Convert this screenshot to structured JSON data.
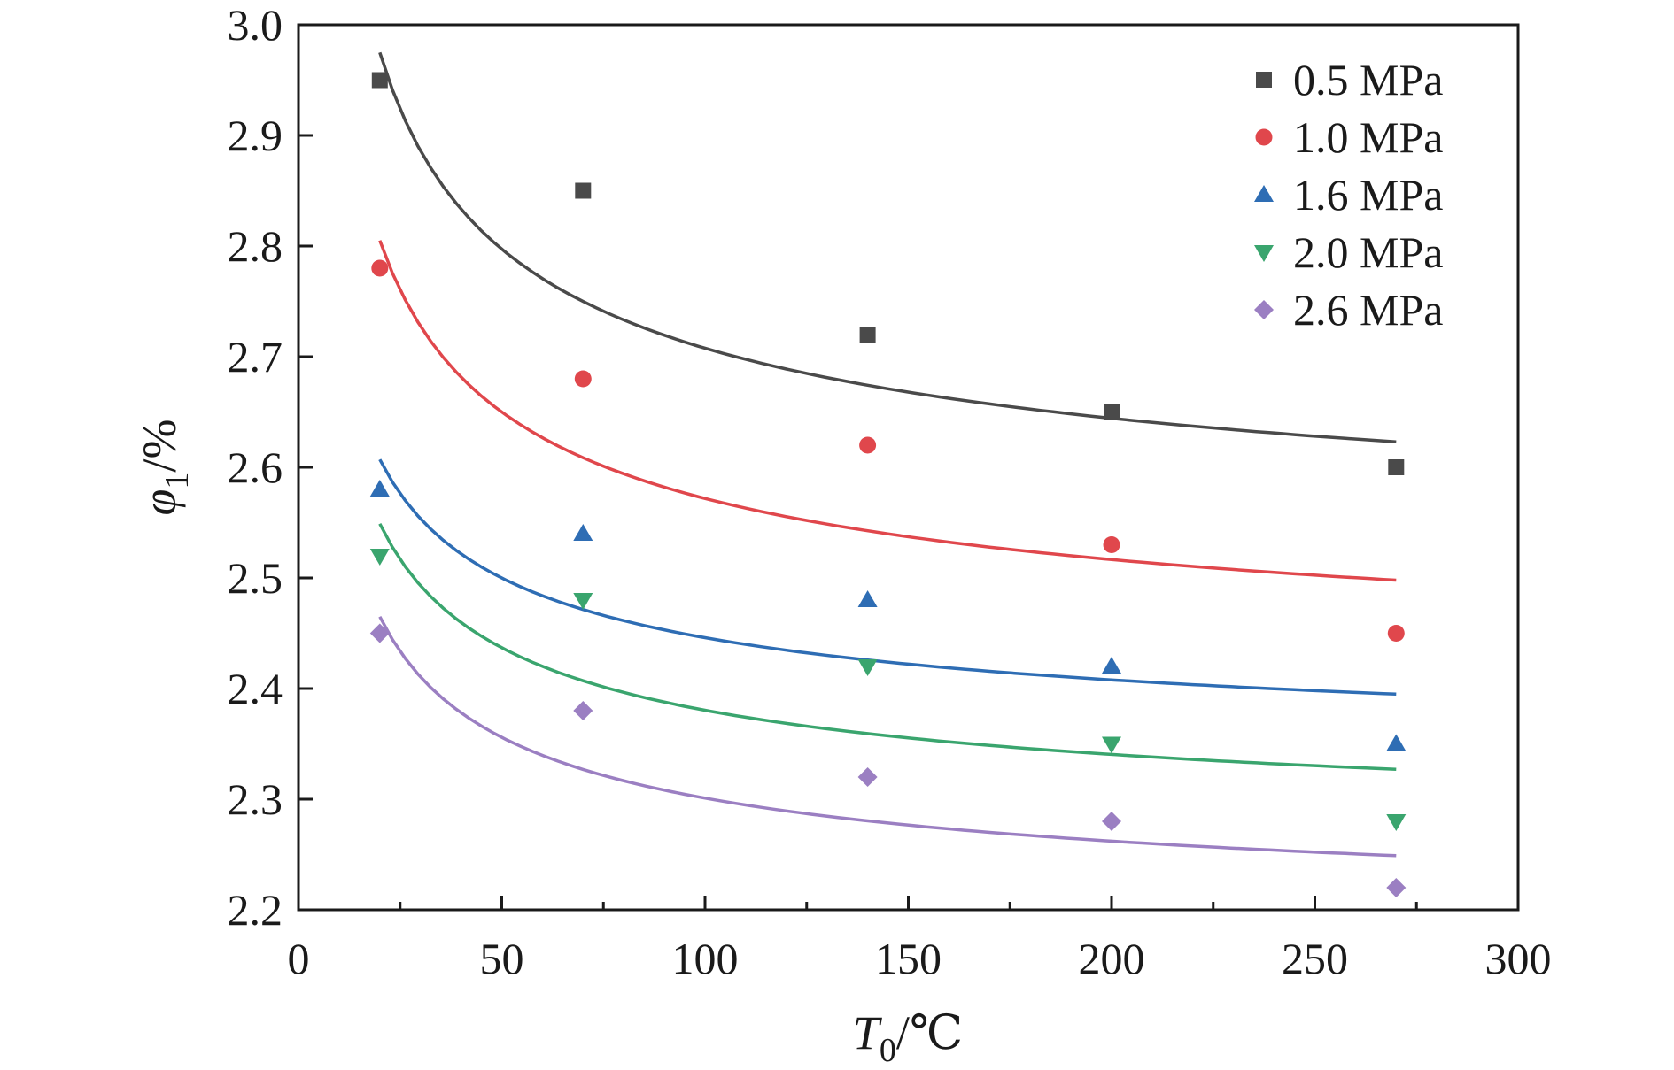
{
  "chart_data": {
    "type": "scatter",
    "xlabel": {
      "symbol": "T",
      "sub": "0",
      "unit": "/℃"
    },
    "ylabel": {
      "symbol": "φ",
      "sub": "1",
      "unit": "/%"
    },
    "xlim": [
      0,
      300
    ],
    "ylim": [
      2.2,
      3.0
    ],
    "xticks": [
      "0",
      "50",
      "100",
      "150",
      "200",
      "250",
      "300"
    ],
    "yticks": [
      "2.2",
      "2.3",
      "2.4",
      "2.5",
      "2.6",
      "2.7",
      "2.8",
      "2.9",
      "3.0"
    ],
    "grid": false,
    "legend_position": "top-right",
    "x": [
      20,
      70,
      140,
      200,
      270
    ],
    "series": [
      {
        "name": "0.5 MPa",
        "marker": "square",
        "color": "#4a4a4a",
        "values": [
          2.95,
          2.85,
          2.72,
          2.65,
          2.6
        ],
        "fit": {
          "x_start": 20,
          "x_end": 270,
          "y_start": 2.975,
          "y_end": 2.623
        }
      },
      {
        "name": "1.0 MPa",
        "marker": "circle",
        "color": "#e0474c",
        "values": [
          2.78,
          2.68,
          2.62,
          2.53,
          2.45
        ],
        "fit": {
          "x_start": 20,
          "x_end": 270,
          "y_start": 2.805,
          "y_end": 2.498
        }
      },
      {
        "name": "1.6 MPa",
        "marker": "triangle-up",
        "color": "#2e6db4",
        "values": [
          2.58,
          2.54,
          2.48,
          2.42,
          2.35
        ],
        "fit": {
          "x_start": 20,
          "x_end": 270,
          "y_start": 2.607,
          "y_end": 2.395
        }
      },
      {
        "name": "2.0 MPa",
        "marker": "triangle-down",
        "color": "#3aa56e",
        "values": [
          2.52,
          2.48,
          2.42,
          2.35,
          2.28
        ],
        "fit": {
          "x_start": 20,
          "x_end": 270,
          "y_start": 2.549,
          "y_end": 2.327
        }
      },
      {
        "name": "2.6 MPa",
        "marker": "diamond",
        "color": "#9b7fc2",
        "values": [
          2.45,
          2.38,
          2.32,
          2.28,
          2.22
        ],
        "fit": {
          "x_start": 20,
          "x_end": 270,
          "y_start": 2.465,
          "y_end": 2.249
        }
      }
    ]
  }
}
